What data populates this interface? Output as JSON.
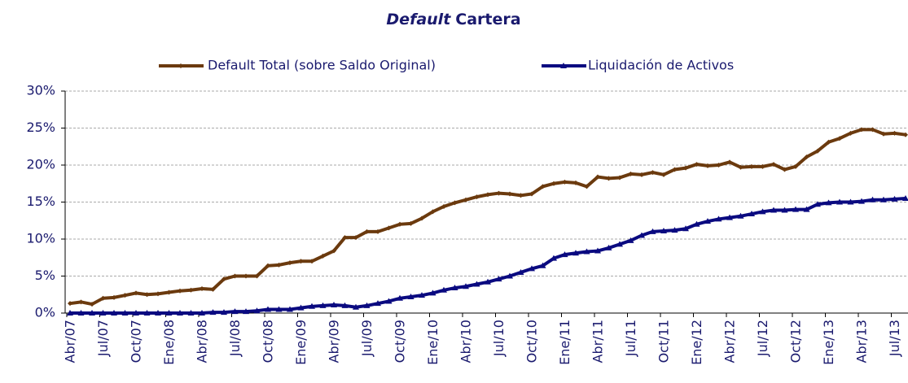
{
  "chart_data": {
    "type": "line",
    "title_italic": "Default",
    "title": "Cartera",
    "categories": [
      "Abr/07",
      null,
      null,
      "Jul/07",
      null,
      null,
      "Oct/07",
      null,
      null,
      "Ene/08",
      null,
      null,
      "Abr/08",
      null,
      null,
      "Jul/08",
      null,
      null,
      "Oct/08",
      null,
      null,
      "Ene/09",
      null,
      null,
      "Abr/09",
      null,
      null,
      "Jul/09",
      null,
      null,
      "Oct/09",
      null,
      null,
      "Ene/10",
      null,
      null,
      "Abr/10",
      null,
      null,
      "Jul/10",
      null,
      null,
      "Oct/10",
      null,
      null,
      "Ene/11",
      null,
      null,
      "Abr/11",
      null,
      null,
      "Jul/11",
      null,
      null,
      "Oct/11",
      null,
      null,
      "Ene/12",
      null,
      null,
      "Abr/12",
      null,
      null,
      "Jul/12",
      null,
      null,
      "Oct/12",
      null,
      null,
      "Ene/13",
      null,
      null,
      "Abr/13",
      null,
      null,
      "Jul/13",
      null
    ],
    "series": [
      {
        "name": "Default Total (sobre Saldo Original)",
        "color": "#6b3a0e",
        "marker": "diamond",
        "values": [
          1.3,
          1.5,
          1.2,
          2.0,
          2.1,
          2.4,
          2.7,
          2.5,
          2.6,
          2.8,
          3.0,
          3.1,
          3.3,
          3.2,
          4.6,
          5.0,
          5.0,
          5.0,
          6.4,
          6.5,
          6.8,
          7.0,
          7.0,
          7.7,
          8.4,
          10.2,
          10.2,
          11.0,
          11.0,
          11.5,
          12.0,
          12.1,
          12.8,
          13.7,
          14.4,
          14.9,
          15.3,
          15.7,
          16.0,
          16.2,
          16.1,
          15.9,
          16.1,
          17.1,
          17.5,
          17.7,
          17.6,
          17.1,
          18.4,
          18.2,
          18.3,
          18.8,
          18.7,
          19.0,
          18.7,
          19.4,
          19.6,
          20.1,
          19.9,
          20.0,
          20.4,
          19.7,
          19.8,
          19.8,
          20.1,
          19.4,
          19.8,
          21.1,
          21.9,
          23.1,
          23.6,
          24.3,
          24.8,
          24.8,
          24.2,
          24.3,
          24.1
        ]
      },
      {
        "name": "Liquidación de Activos",
        "color": "#0a0a80",
        "marker": "triangle",
        "values": [
          0,
          0,
          0,
          0,
          0,
          0,
          0,
          0,
          0,
          0,
          0,
          0,
          0,
          0.1,
          0.1,
          0.2,
          0.2,
          0.3,
          0.5,
          0.5,
          0.5,
          0.7,
          0.9,
          1.0,
          1.1,
          1.0,
          0.8,
          1.0,
          1.3,
          1.6,
          2.0,
          2.2,
          2.4,
          2.7,
          3.1,
          3.4,
          3.6,
          3.9,
          4.2,
          4.6,
          5.0,
          5.5,
          6.0,
          6.4,
          7.4,
          7.9,
          8.1,
          8.3,
          8.4,
          8.8,
          9.3,
          9.8,
          10.5,
          11.0,
          11.1,
          11.2,
          11.4,
          12.0,
          12.4,
          12.7,
          12.9,
          13.1,
          13.4,
          13.7,
          13.9,
          13.9,
          14.0,
          14.0,
          14.7,
          14.9,
          15.0,
          15.0,
          15.1,
          15.3,
          15.3,
          15.4,
          15.5
        ]
      }
    ],
    "ylim": [
      0,
      30
    ],
    "yticks": [
      {
        "value": 0,
        "label": "0%"
      },
      {
        "value": 5,
        "label": "5%"
      },
      {
        "value": 10,
        "label": "10%"
      },
      {
        "value": 15,
        "label": "15%"
      },
      {
        "value": 20,
        "label": "20%"
      },
      {
        "value": 25,
        "label": "25%"
      },
      {
        "value": 30,
        "label": "30%"
      }
    ],
    "grid": true,
    "legend": "top"
  }
}
